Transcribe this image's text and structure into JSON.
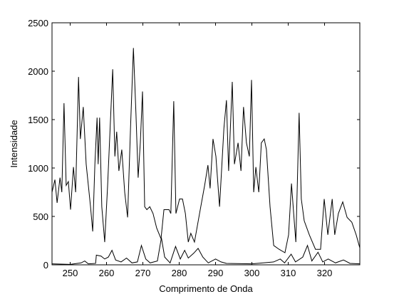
{
  "chart_data": {
    "type": "line",
    "xlabel": "Comprimento de Onda",
    "ylabel": "Intensidade",
    "xlim": [
      245,
      329.7
    ],
    "ylim": [
      0,
      2500
    ],
    "xticks": [
      250,
      260,
      270,
      280,
      290,
      300,
      310,
      320
    ],
    "yticks": [
      0,
      500,
      1000,
      1500,
      2000,
      2500
    ],
    "series": [
      {
        "color": "#000000",
        "x": [
          245.0,
          245.8,
          246.4,
          247.2,
          247.7,
          248.3,
          248.9,
          249.5,
          250.1,
          250.9,
          251.5,
          252.3,
          252.8,
          253.6,
          254.4,
          255.6,
          256.2,
          256.8,
          257.4,
          257.7,
          258.1,
          258.7,
          259.5,
          260.3,
          261.7,
          262.3,
          262.8,
          263.4,
          264.2,
          265.0,
          265.8,
          266.6,
          267.4,
          268.1,
          268.7,
          269.3,
          269.9,
          270.5,
          271.1,
          271.9,
          272.8,
          273.8,
          275.0,
          275.8,
          277.2,
          277.7,
          278.5,
          279.1,
          280.1,
          280.9,
          281.7,
          282.5,
          283.2,
          284.2,
          285.6,
          287.0,
          287.9,
          288.5,
          289.3,
          290.1,
          291.1,
          292.3,
          293.0,
          293.6,
          294.6,
          295.2,
          296.2,
          297.0,
          297.7,
          298.5,
          299.3,
          299.9,
          300.5,
          301.1,
          301.9,
          302.6,
          303.4,
          304.0,
          305.0,
          306.0,
          307.5,
          309.1,
          310.1,
          310.9,
          311.5,
          312.1,
          313.0,
          313.6,
          314.4,
          315.8,
          317.5,
          318.9,
          319.9,
          320.9,
          322.1,
          322.8,
          323.8,
          325.0,
          326.2,
          327.5,
          328.7,
          329.7
        ],
        "values": [
          750,
          880,
          640,
          900,
          750,
          1670,
          820,
          860,
          570,
          1010,
          750,
          1940,
          1300,
          1630,
          1040,
          600,
          345,
          1040,
          1520,
          1040,
          1520,
          600,
          235,
          820,
          2020,
          1120,
          1375,
          970,
          1190,
          750,
          490,
          1410,
          2240,
          1560,
          900,
          1260,
          1790,
          600,
          570,
          600,
          530,
          380,
          270,
          570,
          570,
          530,
          1690,
          530,
          680,
          680,
          530,
          235,
          325,
          235,
          530,
          820,
          1030,
          790,
          1300,
          1120,
          600,
          1410,
          1700,
          970,
          1890,
          1040,
          1260,
          970,
          1630,
          1260,
          1120,
          1910,
          750,
          1010,
          750,
          1260,
          1300,
          1190,
          600,
          200,
          160,
          125,
          310,
          840,
          530,
          235,
          1570,
          680,
          455,
          310,
          160,
          160,
          680,
          310,
          680,
          310,
          530,
          650,
          490,
          440,
          310,
          175
        ]
      },
      {
        "color": "#000000",
        "x": [
          245,
          250,
          253,
          254,
          255,
          257,
          257.2,
          258.5,
          259.5,
          260.5,
          261.5,
          262.5,
          264,
          265.5,
          267,
          268.5,
          269.6,
          270.8,
          272,
          274,
          275.1,
          276,
          277.5,
          279,
          280.3,
          281.5,
          282.5,
          284,
          285.2,
          286.5,
          288,
          290,
          291.5,
          293,
          300,
          306,
          307.8,
          309,
          310.8,
          312,
          314,
          315.3,
          316.5,
          318.2,
          319.5,
          321,
          323,
          325.2,
          327,
          329.7
        ],
        "values": [
          10,
          5,
          20,
          40,
          10,
          15,
          100,
          90,
          60,
          80,
          150,
          50,
          30,
          70,
          20,
          30,
          200,
          60,
          20,
          40,
          280,
          80,
          20,
          190,
          60,
          150,
          70,
          120,
          170,
          80,
          20,
          60,
          30,
          15,
          10,
          30,
          60,
          20,
          110,
          30,
          80,
          200,
          40,
          130,
          30,
          60,
          20,
          50,
          15,
          10
        ]
      }
    ]
  }
}
